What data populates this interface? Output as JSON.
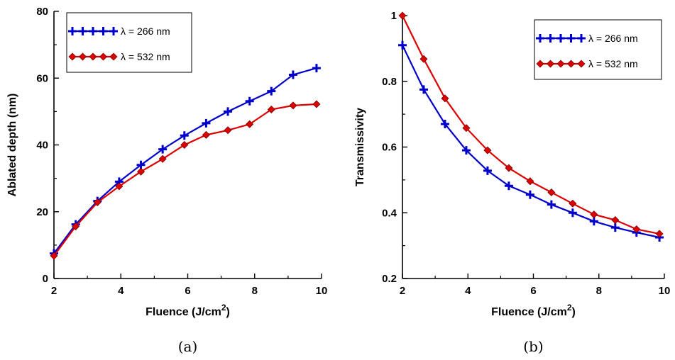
{
  "chart_data": [
    {
      "type": "line",
      "panel_label": "(a)",
      "xlabel": "Fluence (J/cm",
      "xlabel_sup": "2",
      "xlabel_end": ")",
      "ylabel": "Ablated depth (nm)",
      "xlim": [
        2,
        10
      ],
      "ylim": [
        0,
        80
      ],
      "xticks": [
        2,
        4,
        6,
        8,
        10
      ],
      "yticks": [
        0,
        20,
        40,
        60,
        80
      ],
      "legend_position": "top-left",
      "x": [
        2.0,
        2.65,
        3.3,
        3.95,
        4.6,
        5.25,
        5.9,
        6.55,
        7.2,
        7.85,
        8.5,
        9.15,
        9.85
      ],
      "series": [
        {
          "name": "λ = 266 nm",
          "color": "#0000cc",
          "marker": "plus",
          "values": [
            7.5,
            16.2,
            23.2,
            29.0,
            34.0,
            38.7,
            42.8,
            46.5,
            50.0,
            53.1,
            56.1,
            61.0,
            63.0
          ]
        },
        {
          "name": "λ = 532 nm",
          "color": "#dd0000",
          "marker": "diamond",
          "values": [
            6.8,
            15.6,
            22.8,
            27.6,
            32.0,
            35.8,
            40.0,
            43.0,
            44.4,
            46.2,
            50.6,
            51.8,
            52.2
          ]
        }
      ]
    },
    {
      "type": "line",
      "panel_label": "(b)",
      "xlabel": "Fluence (J/cm",
      "xlabel_sup": "2",
      "xlabel_end": ")",
      "ylabel": "Transmissivity",
      "xlim": [
        2,
        10
      ],
      "ylim": [
        0.2,
        1.0
      ],
      "xticks": [
        2,
        4,
        6,
        8,
        10
      ],
      "yticks": [
        0.2,
        0.4,
        0.6,
        0.8,
        1
      ],
      "ytick_labels": [
        "0.2",
        "0.4",
        "0.6",
        "0.8",
        "1"
      ],
      "legend_position": "top-right",
      "x": [
        2.0,
        2.65,
        3.3,
        3.95,
        4.6,
        5.25,
        5.9,
        6.55,
        7.2,
        7.85,
        8.5,
        9.15,
        9.85
      ],
      "series": [
        {
          "name": "λ = 266 nm",
          "color": "#0000cc",
          "marker": "plus",
          "values": [
            0.91,
            0.775,
            0.67,
            0.59,
            0.528,
            0.482,
            0.455,
            0.425,
            0.4,
            0.374,
            0.355,
            0.34,
            0.325
          ]
        },
        {
          "name": "λ = 532 nm",
          "color": "#dd0000",
          "marker": "diamond",
          "values": [
            1.0,
            0.868,
            0.748,
            0.658,
            0.59,
            0.536,
            0.496,
            0.462,
            0.428,
            0.395,
            0.378,
            0.35,
            0.336
          ]
        }
      ]
    }
  ]
}
